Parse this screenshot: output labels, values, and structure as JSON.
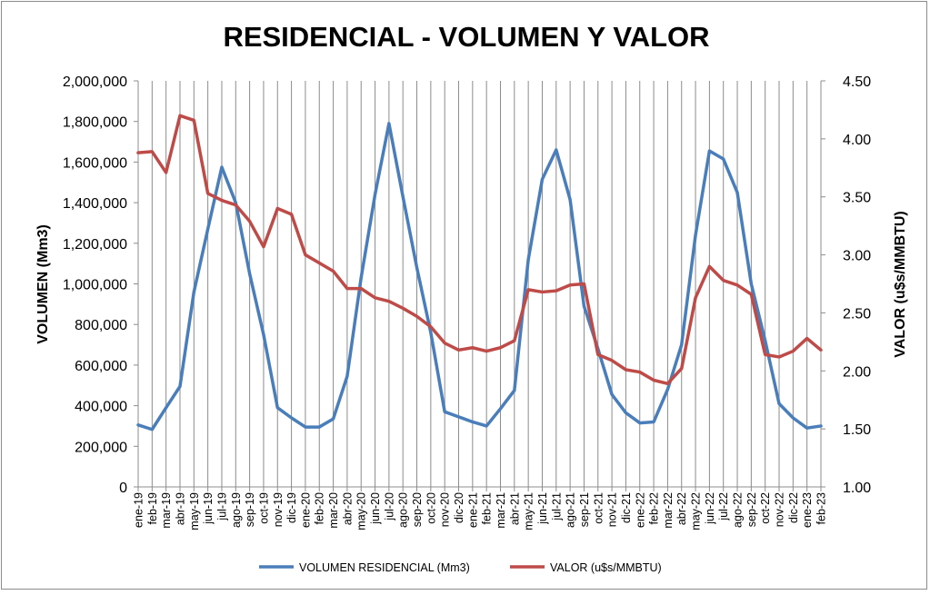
{
  "chart_data": {
    "type": "line",
    "title": "RESIDENCIAL - VOLUMEN Y VALOR",
    "ylabel_left": "VOLUMEN (Mm3)",
    "ylabel_right": "VALOR (u$s/MMBTU)",
    "ylim_left": [
      0,
      2000000
    ],
    "ylim_right": [
      1.0,
      4.5
    ],
    "yticks_left": [
      "0",
      "200,000",
      "400,000",
      "600,000",
      "800,000",
      "1,000,000",
      "1,200,000",
      "1,400,000",
      "1,600,000",
      "1,800,000",
      "2,000,000"
    ],
    "yticks_right": [
      "1.00",
      "1.50",
      "2.00",
      "2.50",
      "3.00",
      "3.50",
      "4.00",
      "4.50"
    ],
    "grid": "vertical",
    "legend_position": "bottom",
    "categories": [
      "ene-19",
      "feb-19",
      "mar-19",
      "abr-19",
      "may-19",
      "jun-19",
      "jul-19",
      "ago-19",
      "sep-19",
      "oct-19",
      "nov-19",
      "dic-19",
      "ene-20",
      "feb-20",
      "mar-20",
      "abr-20",
      "may-20",
      "jun-20",
      "jul-20",
      "ago-20",
      "sep-20",
      "oct-20",
      "nov-20",
      "dic-20",
      "ene-21",
      "feb-21",
      "mar-21",
      "abr-21",
      "may-21",
      "jun-21",
      "jul-21",
      "ago-21",
      "sep-21",
      "oct-21",
      "nov-21",
      "dic-21",
      "ene-22",
      "feb-22",
      "mar-22",
      "abr-22",
      "may-22",
      "jun-22",
      "jul-22",
      "ago-22",
      "sep-22",
      "oct-22",
      "nov-22",
      "dic-22",
      "ene-23",
      "feb-23"
    ],
    "series": [
      {
        "name": "VOLUMEN RESIDENCIAL (Mm3)",
        "axis": "left",
        "color": "#4a7ebb",
        "values": [
          305000,
          283000,
          390000,
          495000,
          960000,
          1270000,
          1575000,
          1400000,
          1050000,
          750000,
          390000,
          340000,
          295000,
          295000,
          335000,
          545000,
          1030000,
          1440000,
          1790000,
          1430000,
          1080000,
          760000,
          370000,
          345000,
          320000,
          300000,
          385000,
          475000,
          1120000,
          1515000,
          1660000,
          1415000,
          890000,
          680000,
          455000,
          365000,
          315000,
          320000,
          480000,
          700000,
          1240000,
          1655000,
          1615000,
          1450000,
          1000000,
          720000,
          410000,
          340000,
          290000,
          300000
        ]
      },
      {
        "name": "VALOR (u$s/MMBTU)",
        "axis": "right",
        "color": "#be4b48",
        "values": [
          3.88,
          3.89,
          3.71,
          4.2,
          4.16,
          3.53,
          3.47,
          3.43,
          3.29,
          3.07,
          3.4,
          3.35,
          3.0,
          2.93,
          2.86,
          2.71,
          2.71,
          2.63,
          2.6,
          2.54,
          2.47,
          2.38,
          2.24,
          2.18,
          2.2,
          2.17,
          2.2,
          2.26,
          2.7,
          2.68,
          2.69,
          2.74,
          2.75,
          2.14,
          2.09,
          2.01,
          1.99,
          1.92,
          1.89,
          2.02,
          2.63,
          2.9,
          2.78,
          2.74,
          2.66,
          2.14,
          2.12,
          2.17,
          2.28,
          2.18
        ]
      }
    ]
  }
}
